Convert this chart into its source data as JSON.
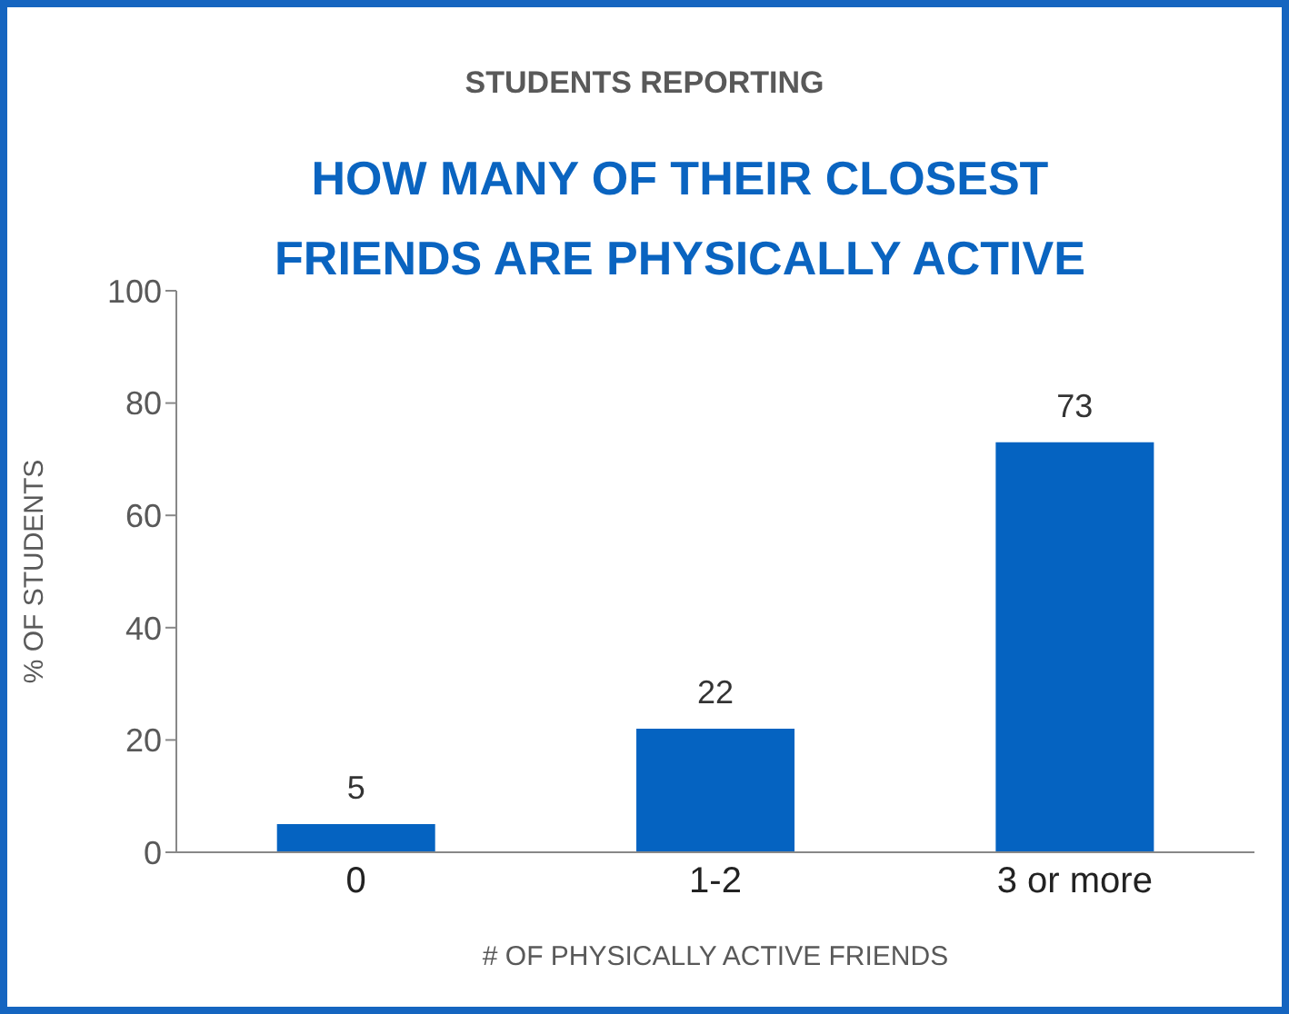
{
  "chart_data": {
    "type": "bar",
    "subtitle": "STUDENTS REPORTING",
    "title": "HOW MANY OF THEIR CLOSEST FRIENDS ARE PHYSICALLY ACTIVE",
    "xlabel": "# OF PHYSICALLY ACTIVE FRIENDS",
    "ylabel": "% OF STUDENTS",
    "categories": [
      "0",
      "1-2",
      "3 or more"
    ],
    "values": [
      5,
      22,
      73
    ],
    "color": "#0563c1",
    "ylim": [
      0,
      100
    ],
    "yticks": [
      0,
      20,
      40,
      60,
      80,
      100
    ],
    "grid": false,
    "data_labels": true
  }
}
